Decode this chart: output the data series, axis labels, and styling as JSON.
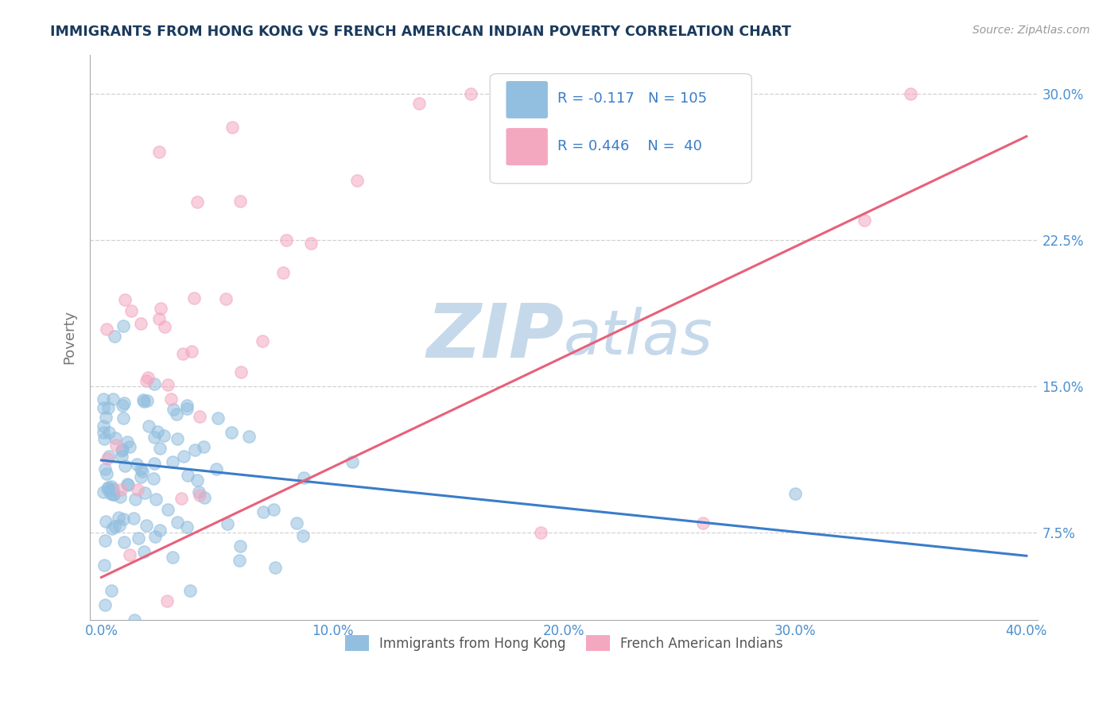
{
  "title": "IMMIGRANTS FROM HONG KONG VS FRENCH AMERICAN INDIAN POVERTY CORRELATION CHART",
  "source_text": "Source: ZipAtlas.com",
  "ylabel": "Poverty",
  "xlim": [
    -0.005,
    0.405
  ],
  "ylim": [
    0.03,
    0.32
  ],
  "xtick_labels": [
    "0.0%",
    "10.0%",
    "20.0%",
    "30.0%",
    "40.0%"
  ],
  "xtick_values": [
    0.0,
    0.1,
    0.2,
    0.3,
    0.4
  ],
  "ytick_labels": [
    "7.5%",
    "15.0%",
    "22.5%",
    "30.0%"
  ],
  "ytick_values": [
    0.075,
    0.15,
    0.225,
    0.3
  ],
  "blue_color": "#92bfdf",
  "pink_color": "#f4a8c0",
  "blue_line_color": "#3a7dc9",
  "pink_line_color": "#e8607a",
  "blue_line_y0": 0.112,
  "blue_line_y1": 0.063,
  "pink_line_y0": 0.052,
  "pink_line_y1": 0.278,
  "R_blue": -0.117,
  "N_blue": 105,
  "R_pink": 0.446,
  "N_pink": 40,
  "legend_label_blue": "Immigrants from Hong Kong",
  "legend_label_pink": "French American Indians",
  "watermark_zip": "ZIP",
  "watermark_atlas": "atlas",
  "watermark_color": "#c5d9ea",
  "title_color": "#1a3a5c",
  "axis_label_color": "#777777",
  "tick_color": "#4a90d0",
  "grid_color": "#cccccc",
  "background_color": "#ffffff",
  "legend_text_color": "#3a7dc9"
}
